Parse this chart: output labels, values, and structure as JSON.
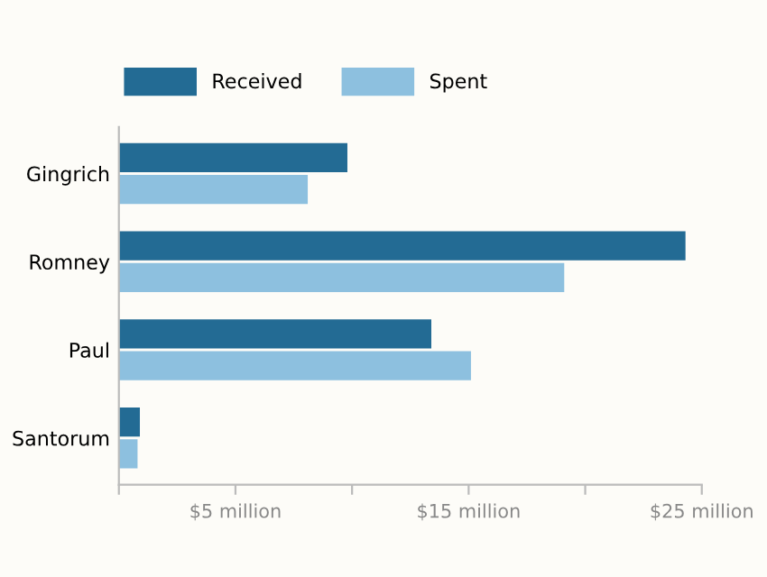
{
  "chart_data": {
    "type": "bar",
    "orientation": "horizontal",
    "categories": [
      "Gingrich",
      "Romney",
      "Paul",
      "Santorum"
    ],
    "series": [
      {
        "name": "Received",
        "color": "#236b94",
        "values": [
          9.8,
          24.3,
          13.4,
          0.9
        ]
      },
      {
        "name": "Spent",
        "color": "#8dc0df",
        "values": [
          8.1,
          19.1,
          15.1,
          0.8
        ]
      }
    ],
    "xlim": [
      0,
      25
    ],
    "xticks": [
      {
        "value": 0,
        "label": null
      },
      {
        "value": 5,
        "label": "$5 million"
      },
      {
        "value": 10,
        "label": null
      },
      {
        "value": 15,
        "label": "$15 million"
      },
      {
        "value": 20,
        "label": null
      },
      {
        "value": 25,
        "label": "$25 million"
      }
    ],
    "grid": false,
    "legend": "top left"
  }
}
